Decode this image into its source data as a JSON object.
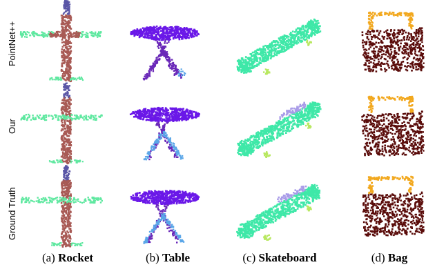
{
  "figure": {
    "row_labels": [
      "PointNet++",
      "Our",
      "Ground Truth"
    ],
    "captions": [
      {
        "prefix": "(a)",
        "name": "Rocket"
      },
      {
        "prefix": "(b)",
        "name": "Table"
      },
      {
        "prefix": "(c)",
        "name": "Skateboard"
      },
      {
        "prefix": "(d)",
        "name": "Bag"
      }
    ],
    "colors": {
      "rocket_nose": "#5a56a6",
      "rocket_body": "#a85a55",
      "rocket_fins": "#5fe8a0",
      "table_top": "#6a18e8",
      "table_legs_dark": "#6a28b8",
      "table_legs_light": "#5aa6e8",
      "skate_deck": "#3fe8a8",
      "skate_grip": "#a89be8",
      "skate_wheels": "#b8e860",
      "bag_body": "#5a0c0a",
      "bag_handle": "#f2a81e"
    }
  }
}
